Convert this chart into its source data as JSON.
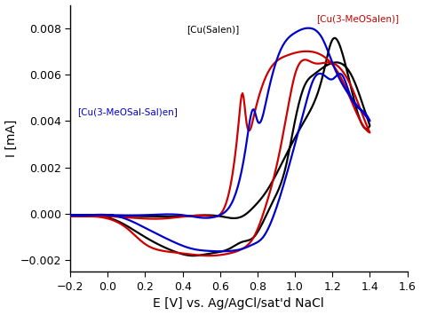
{
  "xlabel": "E [V] vs. Ag/AgCl/sat'd NaCl",
  "ylabel": "I [mA]",
  "xlim": [
    -0.2,
    1.6
  ],
  "ylim": [
    -0.0025,
    0.009
  ],
  "xticks": [
    -0.2,
    0.0,
    0.2,
    0.4,
    0.6,
    0.8,
    1.0,
    1.2,
    1.4,
    1.6
  ],
  "yticks": [
    -0.002,
    0.0,
    0.002,
    0.004,
    0.006,
    0.008
  ],
  "colors": {
    "black": "#000000",
    "red": "#cc0000",
    "blue": "#0000cc"
  },
  "label_black": "[Cu(Salen)]",
  "label_red": "[Cu(3-MeOSalen)]",
  "label_blue": "[Cu(3-MeOSal-Sal)en]",
  "background": "#ffffff",
  "linewidth": 1.6
}
